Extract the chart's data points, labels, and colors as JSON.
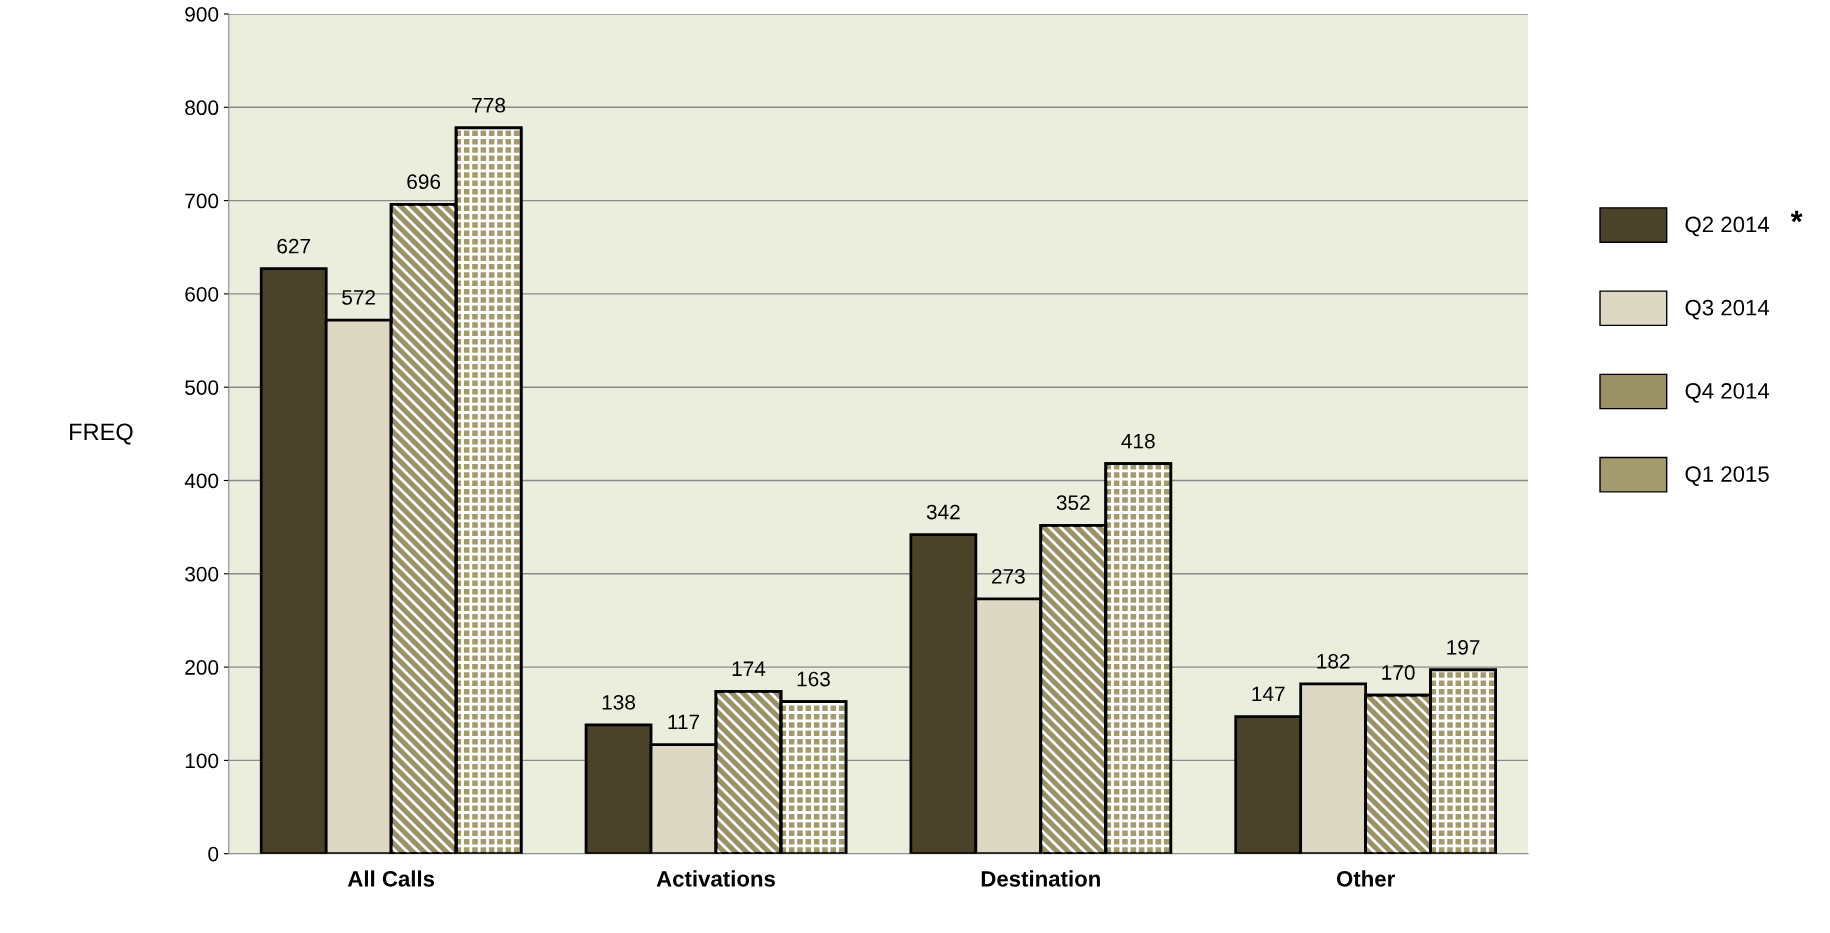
{
  "chart_data": {
    "type": "bar",
    "ylabel": "FREQ",
    "categories": [
      "All Calls",
      "Activations",
      "Destination",
      "Other"
    ],
    "series": [
      {
        "name": "Q2 2014",
        "color": "#4a4329",
        "values": [
          627,
          138,
          342,
          147
        ]
      },
      {
        "name": "Q3 2014",
        "color": "#ddd8c3",
        "values": [
          572,
          117,
          273,
          182
        ]
      },
      {
        "name": "Q4 2014",
        "color": "#9a9166",
        "values": [
          696,
          174,
          352,
          170
        ]
      },
      {
        "name": "Q1 2015",
        "color": "#a39a6e",
        "values": [
          778,
          163,
          418,
          197
        ]
      }
    ],
    "ylim": [
      0,
      900
    ],
    "yticks": [
      0,
      100,
      200,
      300,
      400,
      500,
      600,
      700,
      800,
      900
    ],
    "grid": "y",
    "legend": "right",
    "data_labels": true,
    "annotations": [
      "*"
    ]
  }
}
